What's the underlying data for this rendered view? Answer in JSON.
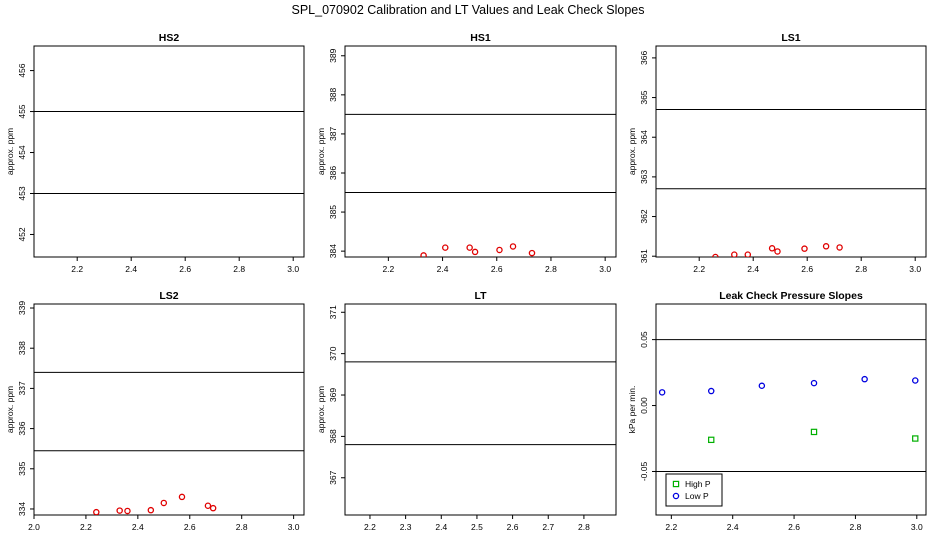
{
  "figure": {
    "title": "SPL_070902  Calibration and LT Values and Leak Check Slopes"
  },
  "chart_data": [
    {
      "id": "hs2",
      "type": "scatter",
      "title": "HS2",
      "ylabel": "approx. ppm",
      "xlim": [
        2.04,
        3.04
      ],
      "ylim": [
        451.45,
        456.6
      ],
      "xticks": [
        2.2,
        2.4,
        2.6,
        2.8,
        3.0
      ],
      "xtick_labels": [
        "2.2",
        "2.4",
        "2.6",
        "2.8",
        "3.0"
      ],
      "yticks": [
        452,
        453,
        454,
        455,
        456
      ],
      "ytick_labels": [
        "452",
        "453",
        "454",
        "455",
        "456"
      ],
      "hlines": [
        455.0,
        453.0
      ],
      "points": [],
      "marker": "circle",
      "point_color": "#e00000"
    },
    {
      "id": "hs1",
      "type": "scatter",
      "title": "HS1",
      "ylabel": "approx. ppm",
      "xlim": [
        2.04,
        3.04
      ],
      "ylim": [
        383.85,
        389.25
      ],
      "xticks": [
        2.2,
        2.4,
        2.6,
        2.8,
        3.0
      ],
      "xtick_labels": [
        "2.2",
        "2.4",
        "2.6",
        "2.8",
        "3.0"
      ],
      "yticks": [
        384,
        385,
        386,
        387,
        388,
        389
      ],
      "ytick_labels": [
        "384",
        "385",
        "386",
        "387",
        "388",
        "389"
      ],
      "hlines": [
        387.5,
        385.5
      ],
      "points": [
        {
          "x": 2.33,
          "y": 383.89
        },
        {
          "x": 2.41,
          "y": 384.09
        },
        {
          "x": 2.5,
          "y": 384.09
        },
        {
          "x": 2.52,
          "y": 383.98
        },
        {
          "x": 2.61,
          "y": 384.03
        },
        {
          "x": 2.66,
          "y": 384.12
        },
        {
          "x": 2.73,
          "y": 383.95
        }
      ],
      "marker": "circle",
      "point_color": "#e00000"
    },
    {
      "id": "ls1",
      "type": "scatter",
      "title": "LS1",
      "ylabel": "approx. ppm",
      "xlim": [
        2.04,
        3.04
      ],
      "ylim": [
        360.98,
        366.3
      ],
      "xticks": [
        2.2,
        2.4,
        2.6,
        2.8,
        3.0
      ],
      "xtick_labels": [
        "2.2",
        "2.4",
        "2.6",
        "2.8",
        "3.0"
      ],
      "yticks": [
        361,
        362,
        363,
        364,
        365,
        366
      ],
      "ytick_labels": [
        "361",
        "362",
        "363",
        "364",
        "365",
        "366"
      ],
      "hlines": [
        364.7,
        362.7
      ],
      "points": [
        {
          "x": 2.26,
          "y": 360.98
        },
        {
          "x": 2.33,
          "y": 361.04
        },
        {
          "x": 2.38,
          "y": 361.04
        },
        {
          "x": 2.47,
          "y": 361.2
        },
        {
          "x": 2.49,
          "y": 361.12
        },
        {
          "x": 2.59,
          "y": 361.19
        },
        {
          "x": 2.67,
          "y": 361.25
        },
        {
          "x": 2.72,
          "y": 361.22
        }
      ],
      "marker": "circle",
      "point_color": "#e00000"
    },
    {
      "id": "ls2",
      "type": "scatter",
      "title": "LS2",
      "ylabel": "approx. ppm",
      "xlim": [
        2.0,
        3.04
      ],
      "ylim": [
        333.85,
        339.1
      ],
      "xticks": [
        2.0,
        2.2,
        2.4,
        2.6,
        2.8,
        3.0
      ],
      "xtick_labels": [
        "2.0",
        "2.2",
        "2.4",
        "2.6",
        "2.8",
        "3.0"
      ],
      "yticks": [
        334,
        335,
        336,
        337,
        338,
        339
      ],
      "ytick_labels": [
        "334",
        "335",
        "336",
        "337",
        "338",
        "339"
      ],
      "hlines": [
        337.4,
        335.45
      ],
      "points": [
        {
          "x": 2.24,
          "y": 333.92
        },
        {
          "x": 2.33,
          "y": 333.96
        },
        {
          "x": 2.36,
          "y": 333.95
        },
        {
          "x": 2.45,
          "y": 333.97
        },
        {
          "x": 2.5,
          "y": 334.15
        },
        {
          "x": 2.57,
          "y": 334.3
        },
        {
          "x": 2.67,
          "y": 334.08
        },
        {
          "x": 2.69,
          "y": 334.02
        }
      ],
      "marker": "circle",
      "point_color": "#e00000"
    },
    {
      "id": "lt",
      "type": "scatter",
      "title": "LT",
      "ylabel": "approx. ppm",
      "xlim": [
        2.13,
        2.89
      ],
      "ylim": [
        366.1,
        371.2
      ],
      "xticks": [
        2.2,
        2.3,
        2.4,
        2.5,
        2.6,
        2.7,
        2.8
      ],
      "xtick_labels": [
        "2.2",
        "2.3",
        "2.4",
        "2.5",
        "2.6",
        "2.7",
        "2.8"
      ],
      "yticks": [
        367,
        368,
        369,
        370,
        371
      ],
      "ytick_labels": [
        "367",
        "368",
        "369",
        "370",
        "371"
      ],
      "hlines": [
        369.8,
        367.8
      ],
      "points": [],
      "marker": "circle",
      "point_color": "#e00000"
    },
    {
      "id": "leak",
      "type": "scatter",
      "title": "Leak Check Pressure Slopes",
      "ylabel": "kPa per min.",
      "xlim": [
        2.15,
        3.03
      ],
      "ylim": [
        -0.083,
        0.077
      ],
      "xticks": [
        2.2,
        2.4,
        2.6,
        2.8,
        3.0
      ],
      "xtick_labels": [
        "2.2",
        "2.4",
        "2.6",
        "2.8",
        "3.0"
      ],
      "yticks": [
        -0.05,
        0.0,
        0.05
      ],
      "ytick_labels": [
        "-0.05",
        "0.00",
        "0.05"
      ],
      "hlines": [
        0.05,
        -0.05
      ],
      "series": [
        {
          "name": "High P",
          "color": "#00b000",
          "marker": "square",
          "points": [
            {
              "x": 2.33,
              "y": -0.026
            },
            {
              "x": 2.665,
              "y": -0.02
            },
            {
              "x": 2.995,
              "y": -0.025
            }
          ]
        },
        {
          "name": "Low P",
          "color": "#0000e0",
          "marker": "circle",
          "points": [
            {
              "x": 2.17,
              "y": 0.01
            },
            {
              "x": 2.33,
              "y": 0.011
            },
            {
              "x": 2.495,
              "y": 0.015
            },
            {
              "x": 2.665,
              "y": 0.017
            },
            {
              "x": 2.83,
              "y": 0.02
            },
            {
              "x": 2.995,
              "y": 0.019
            }
          ]
        }
      ],
      "legend": {
        "position": "bottom-left"
      }
    }
  ]
}
